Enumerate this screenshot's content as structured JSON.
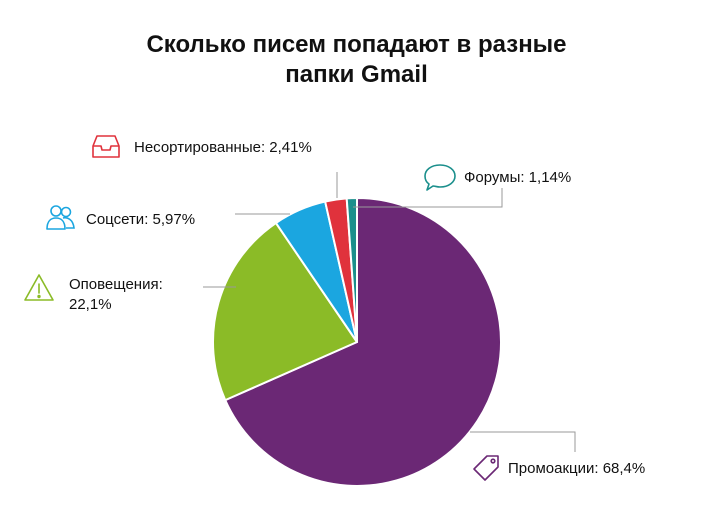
{
  "title_lines": [
    "Сколько писем попадают в разные",
    "папки Gmail"
  ],
  "chart_data": {
    "type": "pie",
    "title": "Сколько писем попадают в разные папки Gmail",
    "start_angle_deg": 0,
    "direction": "clockwise",
    "slices": [
      {
        "label": "Промоакции",
        "value": 68.4,
        "display": "Промоакции: 68,4%",
        "color": "#6b2875",
        "icon": "price-tag-icon",
        "icon_color": "#6b2875"
      },
      {
        "label": "Оповещения",
        "value": 22.1,
        "display": [
          "Оповещения:",
          "22,1%"
        ],
        "color": "#8bbb27",
        "icon": "warning-triangle-icon",
        "icon_color": "#8bbb27"
      },
      {
        "label": "Соцсети",
        "value": 5.97,
        "display": "Соцсети: 5,97%",
        "color": "#1ba6e0",
        "icon": "people-icon",
        "icon_color": "#1ba6e0"
      },
      {
        "label": "Несортированные",
        "value": 2.41,
        "display": "Несортированные: 2,41%",
        "color": "#e0323c",
        "icon": "inbox-tray-icon",
        "icon_color": "#e0323c"
      },
      {
        "label": "Форумы",
        "value": 1.14,
        "display": "Форумы: 1,14%",
        "color": "#1b8f8c",
        "icon": "speech-bubble-icon",
        "icon_color": "#1b8f8c"
      }
    ]
  }
}
